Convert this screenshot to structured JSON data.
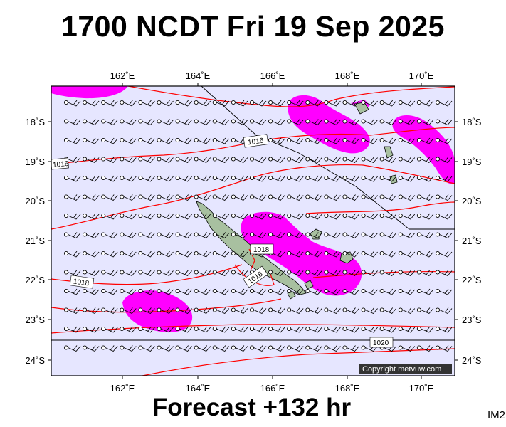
{
  "header": {
    "title": "1700 NCDT Fri 19 Sep 2025"
  },
  "footer": {
    "forecast_label": "Forecast +132 hr",
    "image_code": "IM2"
  },
  "map": {
    "region": "New Caledonia",
    "longitude_labels": [
      "162˚E",
      "164˚E",
      "166˚E",
      "168˚E",
      "170˚E"
    ],
    "latitude_labels": [
      "18˚S",
      "19˚S",
      "20˚S",
      "21˚S",
      "22˚S",
      "23˚S",
      "24˚S"
    ],
    "isobar_labels": [
      "1016",
      "1016",
      "1018",
      "1018",
      "1018",
      "1020"
    ],
    "copyright": "Copyright metvuw.com",
    "colors": {
      "sea": "#e6e6ff",
      "rain": "#ff00ff",
      "isobar": "#ff0000",
      "land": "#a8c0a0",
      "wind_barb": "#000000"
    }
  }
}
